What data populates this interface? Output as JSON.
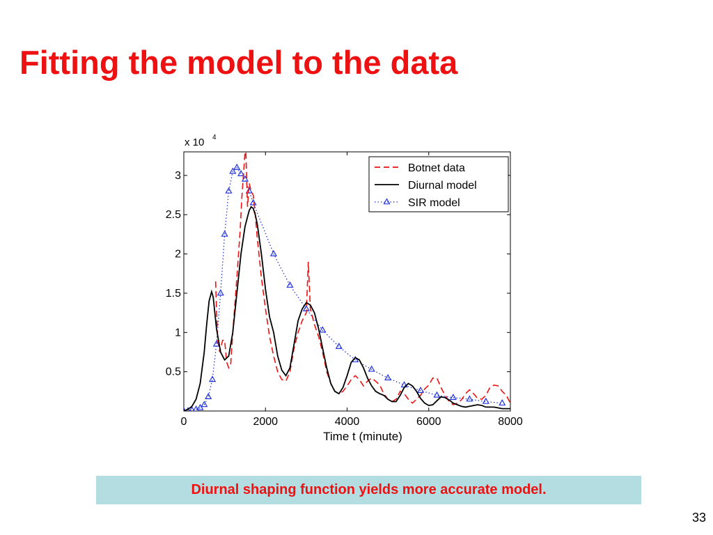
{
  "slide": {
    "title": "Fitting the model to the data",
    "caption": "Diurnal shaping function yields more accurate model.",
    "page_number": "33"
  },
  "colors": {
    "title": "#ee1111",
    "caption_bg": "#b3dde0",
    "botnet": "#ee1111",
    "diurnal": "#000000",
    "sir": "#2233dd"
  },
  "chart_data": {
    "type": "line",
    "xlabel": "Time t (minute)",
    "ylabel": "",
    "scale_label": "x 10",
    "scale_exponent": "4",
    "xlim": [
      0,
      8000
    ],
    "ylim": [
      0,
      3.3
    ],
    "xticks": [
      {
        "value": 0,
        "label": "0"
      },
      {
        "value": 2000,
        "label": "2000"
      },
      {
        "value": 4000,
        "label": "4000"
      },
      {
        "value": 6000,
        "label": "6000"
      },
      {
        "value": 8000,
        "label": "8000"
      }
    ],
    "yticks": [
      {
        "value": 0.5,
        "label": "0.5"
      },
      {
        "value": 1,
        "label": "1"
      },
      {
        "value": 1.5,
        "label": "1.5"
      },
      {
        "value": 2,
        "label": "2"
      },
      {
        "value": 2.5,
        "label": "2.5"
      },
      {
        "value": 3,
        "label": "3"
      }
    ],
    "legend_position": "top-right",
    "series": [
      {
        "name": "Botnet data",
        "color": "#ee1111",
        "style": "dashed",
        "x": [
          780,
          800,
          830,
          880,
          950,
          1000,
          1050,
          1100,
          1150,
          1200,
          1300,
          1380,
          1420,
          1460,
          1500,
          1520,
          1560,
          1600,
          1650,
          1700,
          1750,
          1800,
          1900,
          2000,
          2100,
          2200,
          2300,
          2400,
          2500,
          2600,
          2700,
          2800,
          2900,
          3000,
          3050,
          3100,
          3150,
          3200,
          3300,
          3400,
          3500,
          3600,
          3700,
          3800,
          3900,
          4000,
          4100,
          4200,
          4300,
          4400,
          4500,
          4600,
          4700,
          4800,
          4900,
          5000,
          5100,
          5200,
          5300,
          5400,
          5500,
          5600,
          5700,
          5800,
          5900,
          6000,
          6100,
          6200,
          6300,
          6400,
          6500,
          6600,
          6700,
          6800,
          6900,
          7000,
          7100,
          7200,
          7300,
          7400,
          7500,
          7600,
          7700,
          7800,
          7900,
          8000
        ],
        "y": [
          1.65,
          1.3,
          0.9,
          0.75,
          0.9,
          0.9,
          0.62,
          0.55,
          0.6,
          1.0,
          1.7,
          2.3,
          2.7,
          3.0,
          3.3,
          3.3,
          2.6,
          2.9,
          2.8,
          2.75,
          2.5,
          2.2,
          1.7,
          1.3,
          0.95,
          0.7,
          0.5,
          0.4,
          0.38,
          0.5,
          0.8,
          1.0,
          1.15,
          1.25,
          1.9,
          1.3,
          1.2,
          1.1,
          0.95,
          0.75,
          0.5,
          0.35,
          0.25,
          0.22,
          0.25,
          0.32,
          0.4,
          0.45,
          0.4,
          0.32,
          0.38,
          0.42,
          0.38,
          0.33,
          0.22,
          0.15,
          0.12,
          0.15,
          0.25,
          0.22,
          0.15,
          0.1,
          0.15,
          0.2,
          0.28,
          0.33,
          0.42,
          0.42,
          0.3,
          0.2,
          0.12,
          0.08,
          0.1,
          0.14,
          0.22,
          0.27,
          0.22,
          0.16,
          0.15,
          0.2,
          0.3,
          0.33,
          0.32,
          0.25,
          0.2,
          0.1
        ]
      },
      {
        "name": "Diurnal model",
        "color": "#000000",
        "style": "solid",
        "x": [
          0,
          100,
          200,
          300,
          400,
          500,
          560,
          620,
          680,
          720,
          800,
          900,
          1000,
          1100,
          1200,
          1300,
          1400,
          1500,
          1600,
          1650,
          1700,
          1750,
          1800,
          1900,
          2000,
          2100,
          2200,
          2300,
          2400,
          2500,
          2600,
          2700,
          2800,
          2900,
          3000,
          3100,
          3200,
          3300,
          3400,
          3500,
          3600,
          3700,
          3800,
          3900,
          4000,
          4100,
          4200,
          4300,
          4400,
          4500,
          4600,
          4700,
          4800,
          4900,
          5000,
          5100,
          5200,
          5300,
          5400,
          5500,
          5600,
          5700,
          5800,
          5900,
          6000,
          6100,
          6200,
          6300,
          6400,
          6500,
          6600,
          6700,
          6800,
          6900,
          7000,
          7100,
          7200,
          7300,
          7400,
          7500,
          7600,
          7700,
          7800,
          7900,
          8000
        ],
        "y": [
          0.0,
          0.02,
          0.06,
          0.15,
          0.35,
          0.75,
          1.1,
          1.4,
          1.52,
          1.45,
          1.05,
          0.75,
          0.65,
          0.7,
          1.0,
          1.5,
          2.0,
          2.35,
          2.55,
          2.6,
          2.58,
          2.5,
          2.38,
          2.0,
          1.55,
          1.2,
          1.0,
          0.7,
          0.52,
          0.45,
          0.55,
          0.85,
          1.15,
          1.3,
          1.38,
          1.35,
          1.25,
          1.05,
          0.8,
          0.55,
          0.35,
          0.25,
          0.22,
          0.3,
          0.45,
          0.62,
          0.68,
          0.65,
          0.55,
          0.42,
          0.32,
          0.25,
          0.22,
          0.2,
          0.15,
          0.12,
          0.12,
          0.2,
          0.3,
          0.35,
          0.32,
          0.25,
          0.16,
          0.1,
          0.07,
          0.08,
          0.13,
          0.18,
          0.17,
          0.14,
          0.1,
          0.08,
          0.06,
          0.05,
          0.06,
          0.07,
          0.08,
          0.07,
          0.05,
          0.05,
          0.05,
          0.04,
          0.03,
          0.03,
          0.03
        ]
      },
      {
        "name": "SIR model",
        "color": "#2233dd",
        "style": "dotted-triangle",
        "x": [
          0,
          100,
          200,
          300,
          400,
          500,
          600,
          700,
          800,
          900,
          1000,
          1100,
          1200,
          1300,
          1400,
          1500,
          1600,
          1700,
          2200,
          2600,
          3000,
          3400,
          3800,
          4200,
          4600,
          5000,
          5400,
          5800,
          6200,
          6600,
          7000,
          7400,
          7800
        ],
        "y": [
          0.0,
          0.0,
          0.01,
          0.02,
          0.04,
          0.08,
          0.18,
          0.4,
          0.85,
          1.5,
          2.25,
          2.8,
          3.05,
          3.1,
          3.02,
          2.95,
          2.8,
          2.65,
          2.0,
          1.6,
          1.3,
          1.03,
          0.82,
          0.65,
          0.53,
          0.42,
          0.33,
          0.26,
          0.2,
          0.17,
          0.15,
          0.12,
          0.1
        ]
      }
    ]
  }
}
